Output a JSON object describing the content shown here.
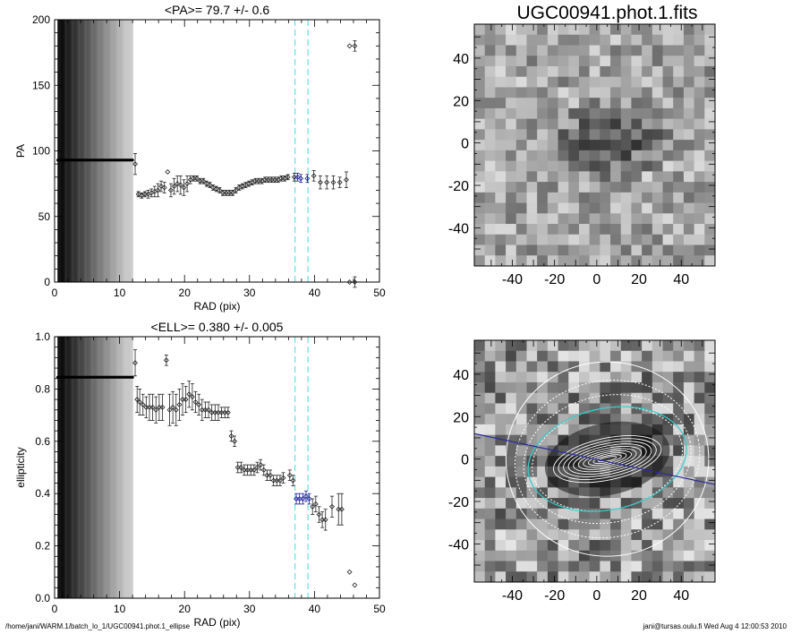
{
  "chart_data": [
    {
      "type": "scatter",
      "id": "pa-profile",
      "title": "<PA>=  79.7 +/-   0.6",
      "xlabel": "RAD (pix)",
      "ylabel": "PA",
      "xlim": [
        0,
        50
      ],
      "ylim": [
        0,
        200
      ],
      "xticks": [
        0,
        10,
        20,
        30,
        40,
        50
      ],
      "yticks": [
        0,
        50,
        100,
        150,
        200
      ],
      "fit_range": [
        37,
        39
      ],
      "inner_constant": {
        "x_from": 0.5,
        "x_to": 12,
        "y": 93
      },
      "points": [
        [
          12.4,
          90,
          8
        ],
        [
          12.9,
          67,
          2
        ],
        [
          13.4,
          66,
          2
        ],
        [
          13.9,
          67,
          2
        ],
        [
          14.4,
          67,
          3
        ],
        [
          14.9,
          68,
          3
        ],
        [
          15.4,
          69,
          4
        ],
        [
          15.9,
          70,
          5
        ],
        [
          16.4,
          73,
          4
        ],
        [
          16.9,
          72,
          4
        ],
        [
          17.4,
          84,
          0
        ],
        [
          17.9,
          70,
          5
        ],
        [
          18.4,
          73,
          6
        ],
        [
          18.9,
          75,
          6
        ],
        [
          19.4,
          74,
          7
        ],
        [
          19.9,
          72,
          6
        ],
        [
          20.4,
          75,
          6
        ],
        [
          20.9,
          78,
          3
        ],
        [
          21.4,
          79,
          2
        ],
        [
          21.9,
          79,
          2
        ],
        [
          22.4,
          77,
          2
        ],
        [
          22.9,
          77,
          2
        ],
        [
          23.4,
          75,
          2
        ],
        [
          23.9,
          74,
          2
        ],
        [
          24.4,
          72,
          2
        ],
        [
          24.9,
          71,
          2
        ],
        [
          25.4,
          70,
          2
        ],
        [
          25.9,
          68,
          2
        ],
        [
          26.4,
          68,
          2
        ],
        [
          26.9,
          68,
          2
        ],
        [
          27.4,
          68,
          2
        ],
        [
          27.9,
          70,
          2
        ],
        [
          28.4,
          72,
          2
        ],
        [
          28.9,
          73,
          2
        ],
        [
          29.4,
          74,
          2
        ],
        [
          29.9,
          75,
          2
        ],
        [
          30.4,
          76,
          2
        ],
        [
          30.9,
          77,
          2
        ],
        [
          31.4,
          77,
          2
        ],
        [
          31.9,
          77,
          2
        ],
        [
          32.4,
          78,
          2
        ],
        [
          32.9,
          78,
          2
        ],
        [
          33.4,
          78,
          2
        ],
        [
          33.9,
          78,
          2
        ],
        [
          34.4,
          78,
          2
        ],
        [
          34.9,
          79,
          2
        ],
        [
          35.4,
          79,
          2
        ],
        [
          35.9,
          80,
          2
        ],
        [
          36.9,
          80,
          3
        ],
        [
          37.4,
          80,
          3
        ],
        [
          37.9,
          79,
          3
        ],
        [
          38.9,
          79,
          3
        ],
        [
          39.9,
          81,
          4
        ],
        [
          40.9,
          76,
          5
        ],
        [
          41.9,
          76,
          5
        ],
        [
          42.9,
          76,
          5
        ],
        [
          43.9,
          76,
          4
        ],
        [
          44.9,
          78,
          6
        ],
        [
          45.4,
          0,
          0
        ],
        [
          45.4,
          180,
          0
        ],
        [
          46.2,
          0,
          4
        ],
        [
          46.2,
          180,
          4
        ]
      ]
    },
    {
      "type": "scatter",
      "id": "ellipticity-profile",
      "title": "<ELL>= 0.380 +/-  0.005",
      "xlabel": "RAD (pix)",
      "ylabel": "ellipticity",
      "xlim": [
        0,
        50
      ],
      "ylim": [
        0,
        1
      ],
      "xticks": [
        0,
        10,
        20,
        30,
        40,
        50
      ],
      "yticks": [
        "0.0",
        "0.2",
        "0.4",
        "0.6",
        "0.8",
        "1.0"
      ],
      "fit_range": [
        37,
        39
      ],
      "inner_constant": {
        "x_from": 0.5,
        "x_to": 12,
        "y": 0.845
      },
      "points": [
        [
          12.4,
          0.9,
          0.05
        ],
        [
          12.7,
          0.76,
          0.05
        ],
        [
          13.1,
          0.75,
          0.05
        ],
        [
          13.6,
          0.74,
          0.04
        ],
        [
          14.1,
          0.73,
          0.04
        ],
        [
          14.6,
          0.73,
          0.05
        ],
        [
          15.1,
          0.73,
          0.05
        ],
        [
          15.6,
          0.72,
          0.05
        ],
        [
          16.1,
          0.73,
          0.05
        ],
        [
          16.6,
          0.73,
          0.05
        ],
        [
          17.2,
          0.91,
          0.02
        ],
        [
          17.7,
          0.72,
          0.06
        ],
        [
          18.2,
          0.73,
          0.06
        ],
        [
          18.7,
          0.72,
          0.06
        ],
        [
          19.2,
          0.74,
          0.06
        ],
        [
          19.7,
          0.76,
          0.06
        ],
        [
          20.2,
          0.76,
          0.05
        ],
        [
          20.7,
          0.78,
          0.05
        ],
        [
          21.2,
          0.77,
          0.05
        ],
        [
          21.7,
          0.75,
          0.04
        ],
        [
          22.2,
          0.74,
          0.04
        ],
        [
          22.7,
          0.72,
          0.04
        ],
        [
          23.2,
          0.72,
          0.03
        ],
        [
          23.7,
          0.72,
          0.03
        ],
        [
          24.2,
          0.71,
          0.03
        ],
        [
          24.7,
          0.71,
          0.03
        ],
        [
          25.2,
          0.71,
          0.03
        ],
        [
          25.7,
          0.71,
          0.02
        ],
        [
          26.2,
          0.71,
          0.02
        ],
        [
          26.7,
          0.71,
          0.02
        ],
        [
          27.2,
          0.62,
          0.02
        ],
        [
          27.7,
          0.6,
          0.02
        ],
        [
          28.2,
          0.5,
          0.02
        ],
        [
          28.7,
          0.5,
          0.02
        ],
        [
          29.2,
          0.49,
          0.02
        ],
        [
          29.7,
          0.49,
          0.02
        ],
        [
          30.2,
          0.49,
          0.02
        ],
        [
          30.7,
          0.49,
          0.02
        ],
        [
          31.2,
          0.5,
          0.02
        ],
        [
          31.7,
          0.51,
          0.02
        ],
        [
          32.2,
          0.49,
          0.02
        ],
        [
          32.7,
          0.47,
          0.02
        ],
        [
          33.2,
          0.47,
          0.02
        ],
        [
          33.7,
          0.45,
          0.02
        ],
        [
          34.2,
          0.45,
          0.02
        ],
        [
          34.7,
          0.45,
          0.02
        ],
        [
          35.2,
          0.46,
          0.02
        ],
        [
          36.2,
          0.47,
          0.02
        ],
        [
          36.7,
          0.45,
          0.02
        ],
        [
          37.2,
          0.38,
          0.02
        ],
        [
          37.7,
          0.38,
          0.02
        ],
        [
          38.2,
          0.38,
          0.02
        ],
        [
          38.7,
          0.39,
          0.02
        ],
        [
          39.2,
          0.38,
          0.02
        ],
        [
          39.7,
          0.35,
          0.03
        ],
        [
          40.2,
          0.36,
          0.03
        ],
        [
          40.7,
          0.32,
          0.03
        ],
        [
          41.2,
          0.3,
          0.03
        ],
        [
          41.7,
          0.3,
          0.04
        ],
        [
          42.7,
          0.35,
          0.04
        ],
        [
          43.7,
          0.34,
          0.06
        ],
        [
          44.2,
          0.34,
          0.06
        ],
        [
          45.4,
          0.1,
          0.0
        ],
        [
          46.2,
          0.05,
          0.0
        ]
      ]
    },
    {
      "type": "heatmap",
      "id": "image-top",
      "title": "UGC00941.phot.1.fits",
      "xlim": [
        -58,
        56
      ],
      "ylim": [
        -58,
        56
      ],
      "xticks": [
        -40,
        -20,
        0,
        20,
        40
      ],
      "yticks": [
        -40,
        -20,
        0,
        20,
        40
      ]
    },
    {
      "type": "heatmap",
      "id": "image-bottom",
      "title": "",
      "xlim": [
        -58,
        56
      ],
      "ylim": [
        -58,
        56
      ],
      "xticks": [
        -40,
        -20,
        0,
        20,
        40
      ],
      "yticks": [
        -40,
        -20,
        0,
        20,
        40
      ],
      "fit_ellipse_color": "#33cccc",
      "pa_line_color": "#2a2aa0"
    }
  ],
  "colors": {
    "fit_range_line": "#66e0e0",
    "fit_points": "#1a1a9a",
    "data_points": "#222222"
  },
  "footer": {
    "left": "/home/jani/WARM.1/batch_lo_1/UGC00941.phot.1_ellipse",
    "right": "jani@tursas.oulu.fi  Wed Aug  4 12:00:53 2010"
  }
}
